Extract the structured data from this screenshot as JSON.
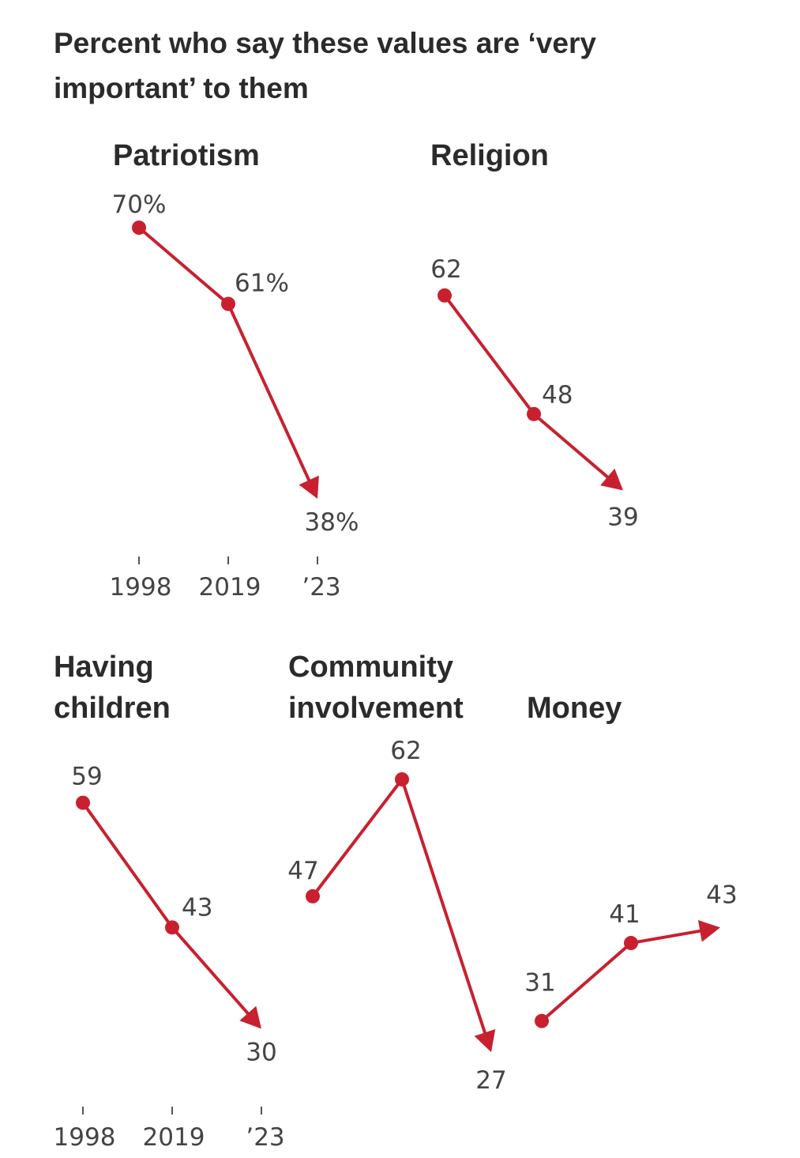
{
  "title": "Percent who say these values are ‘very important’ to them",
  "chart_data": [
    {
      "type": "line",
      "title": [
        "Patriotism"
      ],
      "x": [
        "1998",
        "2019",
        "’23"
      ],
      "values": [
        70,
        61,
        38
      ],
      "value_labels": [
        "70%",
        "61%",
        "38%"
      ],
      "color": "#c8202f"
    },
    {
      "type": "line",
      "title": [
        "Religion"
      ],
      "x": [
        "1998",
        "2019",
        "’23"
      ],
      "values": [
        62,
        48,
        39
      ],
      "value_labels": [
        "62",
        "48",
        "39"
      ],
      "color": "#c8202f"
    },
    {
      "type": "line",
      "title": [
        "Having",
        "children"
      ],
      "x": [
        "1998",
        "2019",
        "’23"
      ],
      "values": [
        59,
        43,
        30
      ],
      "value_labels": [
        "59",
        "43",
        "30"
      ],
      "color": "#c8202f"
    },
    {
      "type": "line",
      "title": [
        "Community",
        "involvement"
      ],
      "x": [
        "1998",
        "2019",
        "’23"
      ],
      "values": [
        47,
        62,
        27
      ],
      "value_labels": [
        "47",
        "62",
        "27"
      ],
      "color": "#c8202f"
    },
    {
      "type": "line",
      "title": [
        "Money"
      ],
      "x": [
        "1998",
        "2019",
        "’23"
      ],
      "values": [
        31,
        41,
        43
      ],
      "value_labels": [
        "31",
        "41",
        "43"
      ],
      "color": "#c8202f"
    }
  ]
}
